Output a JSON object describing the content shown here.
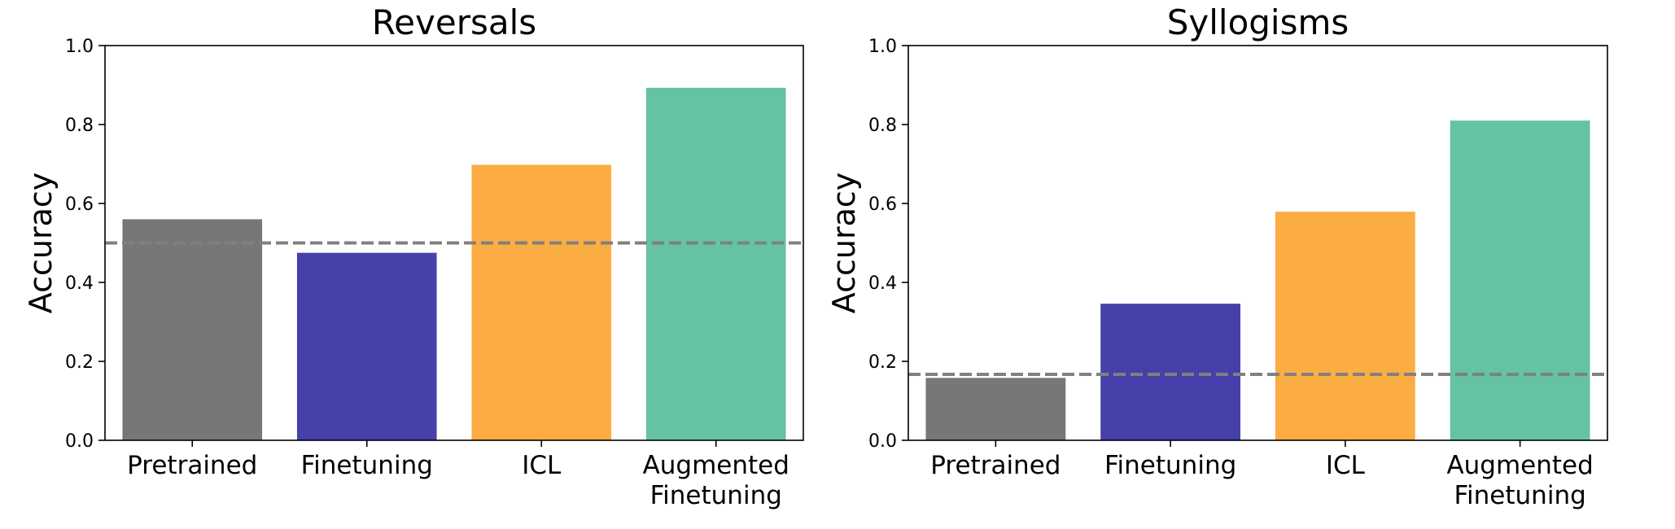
{
  "chart_data": [
    {
      "type": "bar",
      "title": "Reversals",
      "xlabel": "",
      "ylabel": "Accuracy",
      "ylim": [
        0,
        1.0
      ],
      "yticks": [
        "0.0",
        "0.2",
        "0.4",
        "0.6",
        "0.8",
        "1.0"
      ],
      "categories": [
        "Pretrained",
        "Finetuning",
        "ICL",
        "Augmented\nFinetuning"
      ],
      "values": [
        0.56,
        0.475,
        0.698,
        0.893
      ],
      "colors": [
        "#777777",
        "#4640aa",
        "#fbac43",
        "#65c2a5"
      ],
      "baseline": {
        "value": 0.5,
        "style": "dashed",
        "color": "#808080"
      },
      "grid": false,
      "legend": "none"
    },
    {
      "type": "bar",
      "title": "Syllogisms",
      "xlabel": "",
      "ylabel": "Accuracy",
      "ylim": [
        0,
        1.0
      ],
      "yticks": [
        "0.0",
        "0.2",
        "0.4",
        "0.6",
        "0.8",
        "1.0"
      ],
      "categories": [
        "Pretrained",
        "Finetuning",
        "ICL",
        "Augmented\nFinetuning"
      ],
      "values": [
        0.158,
        0.346,
        0.579,
        0.81
      ],
      "colors": [
        "#777777",
        "#4640aa",
        "#fbac43",
        "#65c2a5"
      ],
      "baseline": {
        "value": 0.167,
        "style": "dashed",
        "color": "#808080"
      },
      "grid": false,
      "legend": "none"
    }
  ]
}
